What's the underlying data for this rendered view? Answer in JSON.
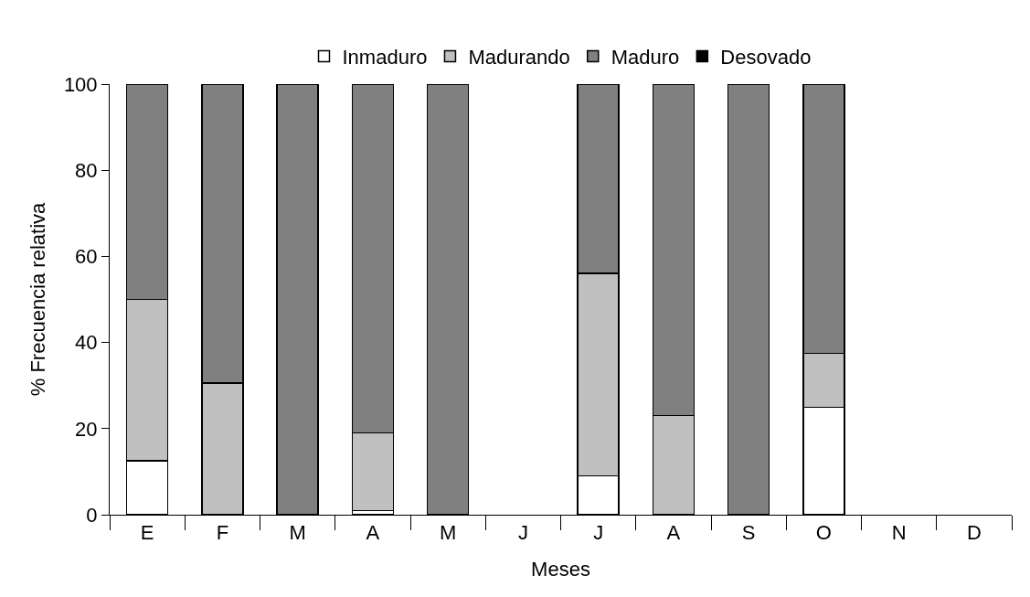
{
  "chart_data": {
    "type": "bar",
    "stacked": true,
    "xlabel": "Meses",
    "ylabel": "% Frecuencia relativa",
    "categories": [
      "E",
      "F",
      "M",
      "A",
      "M",
      "J",
      "J",
      "A",
      "S",
      "O",
      "N",
      "D"
    ],
    "series": [
      {
        "name": "Inmaduro",
        "color": "#ffffff",
        "values": [
          12.5,
          0,
          0,
          1,
          0,
          null,
          9,
          0,
          0,
          25,
          null,
          null
        ]
      },
      {
        "name": "Madurando",
        "color": "#c0c0c0",
        "values": [
          37.5,
          30.6,
          0,
          18,
          0,
          null,
          47,
          23,
          0,
          12.5,
          null,
          null
        ]
      },
      {
        "name": "Maduro",
        "color": "#808080",
        "values": [
          50,
          69.4,
          100,
          81,
          100,
          null,
          44,
          77,
          100,
          62.5,
          null,
          null
        ]
      },
      {
        "name": "Desovado",
        "color": "#000000",
        "values": [
          0,
          0,
          0,
          0,
          0,
          null,
          0,
          0,
          0,
          0,
          null,
          null
        ]
      }
    ],
    "ylim": [
      0,
      100
    ],
    "yticks": [
      0,
      20,
      40,
      60,
      80,
      100
    ],
    "grid": false,
    "legend": "top"
  }
}
